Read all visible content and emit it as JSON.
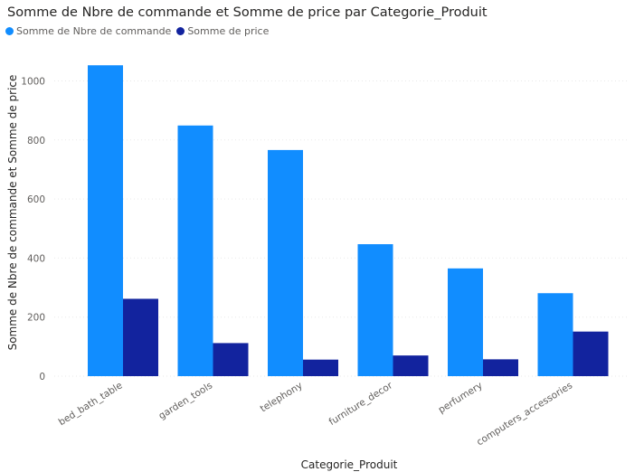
{
  "chart_data": {
    "type": "bar",
    "title": "Somme de Nbre de commande et Somme de price par Categorie_Produit",
    "xlabel": "Categorie_Produit",
    "ylabel": "Somme de Nbre de commande et Somme de price",
    "categories": [
      "bed_bath_table",
      "garden_tools",
      "telephony",
      "furniture_decor",
      "perfumery",
      "computers_accessories"
    ],
    "series": [
      {
        "name": "Somme de Nbre de commande",
        "color": "#118dff",
        "values": [
          1053,
          849,
          766,
          447,
          365,
          281
        ]
      },
      {
        "name": "Somme de price",
        "color": "#12239e",
        "values": [
          262,
          112,
          56,
          70,
          57,
          151
        ]
      }
    ],
    "yticks": [
      0,
      200,
      400,
      600,
      800,
      1000
    ],
    "ylim": [
      0,
      1100
    ],
    "grid": true,
    "legend": "top-left"
  }
}
